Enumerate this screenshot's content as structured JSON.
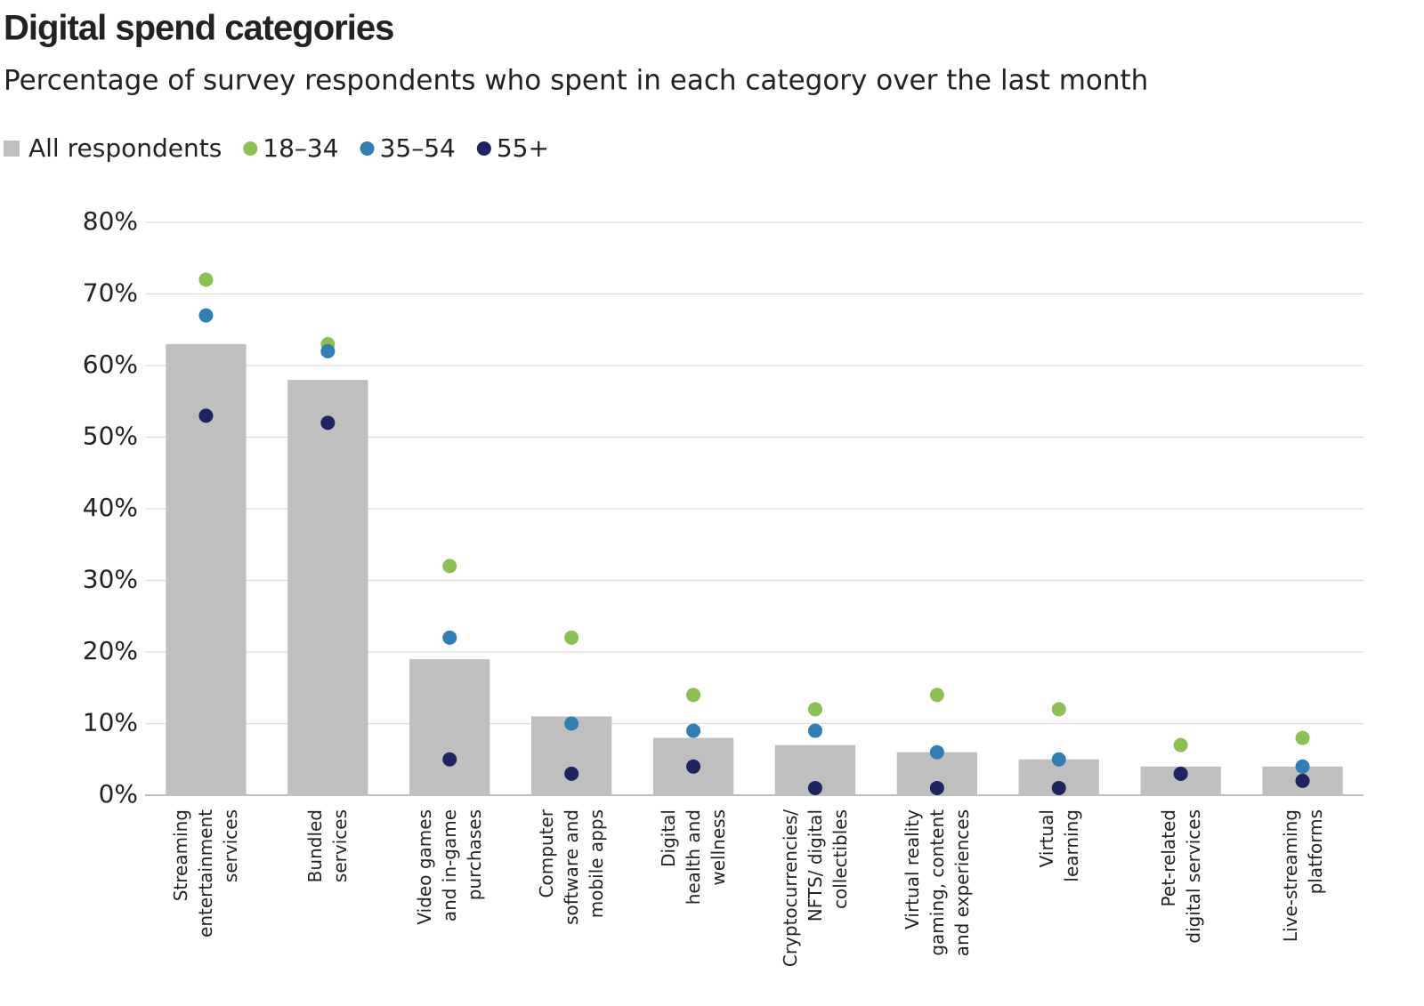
{
  "chart_data": {
    "type": "bar",
    "title": "Digital spend categories",
    "subtitle": "Percentage of survey respondents who spent in each category over the last month",
    "categories": [
      "Streaming\nentertainment\nservices",
      "Bundled\nservices",
      "Video games\nand in-game\npurchases",
      "Computer\nsoftware and\nmobile apps",
      "Digital\nhealth and\nwellness",
      "Cryptocurrencies/\nNFTS/ digital\ncollectibles",
      "Virtual reality\ngaming, content\nand experiences",
      "Virtual\nlearning",
      "Pet-related\ndigital services",
      "Live-streaming\nplatforms"
    ],
    "series": [
      {
        "name": "All respondents",
        "mark": "bar",
        "color": "#bfbfbf",
        "values": [
          63,
          58,
          19,
          11,
          8,
          7,
          6,
          5,
          4,
          4
        ]
      },
      {
        "name": "18–34",
        "mark": "dot",
        "color": "#8cc152",
        "values": [
          72,
          63,
          32,
          22,
          14,
          12,
          14,
          12,
          7,
          8
        ]
      },
      {
        "name": "35–54",
        "mark": "dot",
        "color": "#2f7fb6",
        "values": [
          67,
          62,
          22,
          10,
          9,
          9,
          6,
          5,
          3,
          4
        ]
      },
      {
        "name": "55+",
        "mark": "dot",
        "color": "#1d2461",
        "values": [
          53,
          52,
          5,
          3,
          4,
          1,
          1,
          1,
          3,
          2
        ]
      }
    ],
    "ylim": [
      0,
      80
    ],
    "yticks": [
      {
        "value": 0,
        "label": "0%"
      },
      {
        "value": 10,
        "label": "10%"
      },
      {
        "value": 20,
        "label": "20%"
      },
      {
        "value": 30,
        "label": "30%"
      },
      {
        "value": 40,
        "label": "40%"
      },
      {
        "value": 50,
        "label": "50%"
      },
      {
        "value": 60,
        "label": "60%"
      },
      {
        "value": 70,
        "label": "70%"
      },
      {
        "value": 80,
        "label": "80%"
      }
    ],
    "grid": true
  }
}
